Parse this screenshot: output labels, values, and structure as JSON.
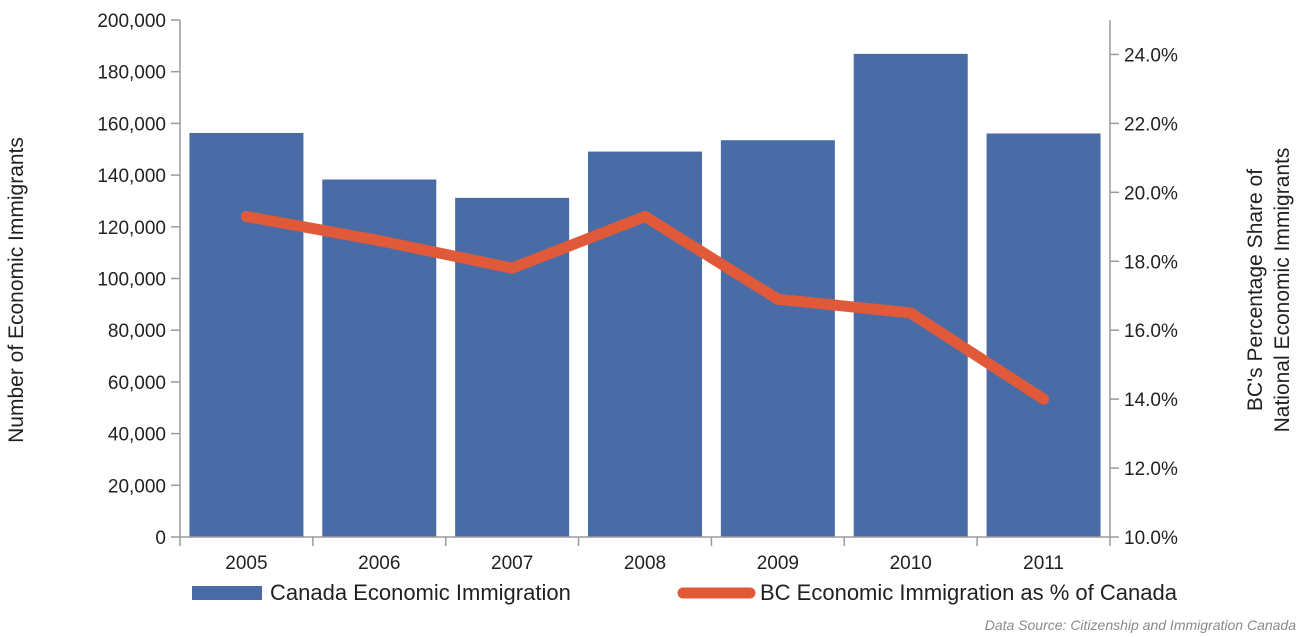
{
  "chart_data": {
    "type": "bar",
    "categories": [
      "2005",
      "2006",
      "2007",
      "2008",
      "2009",
      "2010",
      "2011"
    ],
    "series": [
      {
        "name": "Canada Economic Immigration",
        "type": "bar",
        "axis": "left",
        "values": [
          156300,
          138300,
          131200,
          149100,
          153500,
          186900,
          156100
        ]
      },
      {
        "name": "BC Economic Immigration as % of Canada",
        "type": "line",
        "axis": "right",
        "values": [
          19.3,
          18.6,
          17.8,
          19.3,
          16.9,
          16.5,
          14.0
        ]
      }
    ],
    "ylabel": "Number of Economic Immigrants",
    "ylim": [
      0,
      200000
    ],
    "yticks": [
      0,
      20000,
      40000,
      60000,
      80000,
      100000,
      120000,
      140000,
      160000,
      180000,
      200000
    ],
    "ytick_labels": [
      "0",
      "20,000",
      "40,000",
      "60,000",
      "80,000",
      "100,000",
      "120,000",
      "140,000",
      "160,000",
      "180,000",
      "200,000"
    ],
    "y2label_lines": [
      "BC's Percentage Share of",
      "National Economic Immigrants"
    ],
    "y2lim": [
      10,
      25
    ],
    "y2ticks": [
      10,
      12,
      14,
      16,
      18,
      20,
      22,
      24
    ],
    "y2tick_labels": [
      "10.0%",
      "12.0%",
      "14.0%",
      "16.0%",
      "18.0%",
      "20.0%",
      "22.0%",
      "24.0%"
    ],
    "legend_position": "bottom",
    "grid": false,
    "colors": {
      "bar": "#4a6ca6",
      "line": "#e05a3a",
      "axis": "#9b9b9b",
      "source": "#8a8a8a"
    }
  },
  "source_note": "Data Source: Citizenship and Immigration Canada"
}
